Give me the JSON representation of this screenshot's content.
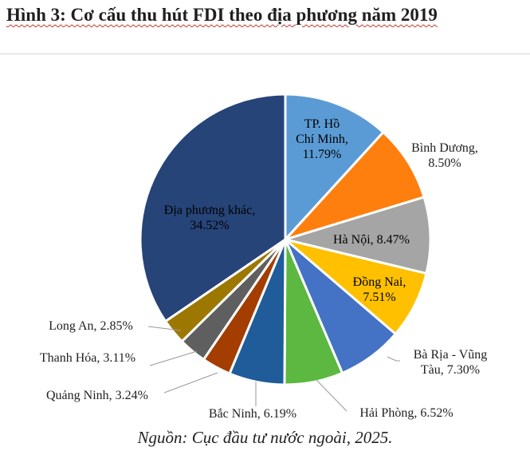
{
  "title": "Hình 3: Cơ cấu thu hút FDI theo địa phương năm 2019",
  "source": "Nguồn: Cục đầu tư nước ngoài, 2025.",
  "chart_data": {
    "type": "pie",
    "slices": [
      {
        "label": "TP. Hồ Chí Minh",
        "value": 11.79,
        "value_text": "11.79%",
        "color": "#5b9bd5",
        "lines": [
          "TP. Hồ",
          "Chí Minh,",
          "11.79%"
        ]
      },
      {
        "label": "Bình Dương",
        "value": 8.5,
        "value_text": "8.50%",
        "color": "#ff7f0e",
        "lines": [
          "Bình Dương,",
          "8.50%"
        ]
      },
      {
        "label": "Hà Nội",
        "value": 8.47,
        "value_text": "8.47%",
        "color": "#a5a5a5",
        "lines": [
          "Hà Nội, 8.47%"
        ]
      },
      {
        "label": "Đồng Nai",
        "value": 7.51,
        "value_text": "7.51%",
        "color": "#ffc000",
        "lines": [
          "Đồng Nai,",
          "7.51%"
        ]
      },
      {
        "label": "Bà Rịa - Vũng Tàu",
        "value": 7.3,
        "value_text": "7.30%",
        "color": "#4472c4",
        "lines": [
          "Bà Rịa - Vũng",
          "Tàu, 7.30%"
        ]
      },
      {
        "label": "Hải Phòng",
        "value": 6.52,
        "value_text": "6.52%",
        "color": "#5cb840",
        "lines": [
          "Hải Phòng, 6.52%"
        ]
      },
      {
        "label": "Bắc Ninh",
        "value": 6.19,
        "value_text": "6.19%",
        "color": "#1f5c99",
        "lines": [
          "Bắc Ninh, 6.19%"
        ]
      },
      {
        "label": "Quảng Ninh",
        "value": 3.24,
        "value_text": "3.24%",
        "color": "#a33d00",
        "lines": [
          "Quảng Ninh, 3.24%"
        ]
      },
      {
        "label": "Thanh Hóa",
        "value": 3.11,
        "value_text": "3.11%",
        "color": "#5f5f5f",
        "lines": [
          "Thanh Hóa, 3.11%"
        ]
      },
      {
        "label": "Long An",
        "value": 2.85,
        "value_text": "2.85%",
        "color": "#9c7800",
        "lines": [
          "Long An, 2.85%"
        ]
      },
      {
        "label": "Địa phương khác",
        "value": 34.52,
        "value_text": "34.52%",
        "color": "#264478",
        "lines": [
          "Địa phương khác,",
          "34.52%"
        ]
      }
    ]
  }
}
